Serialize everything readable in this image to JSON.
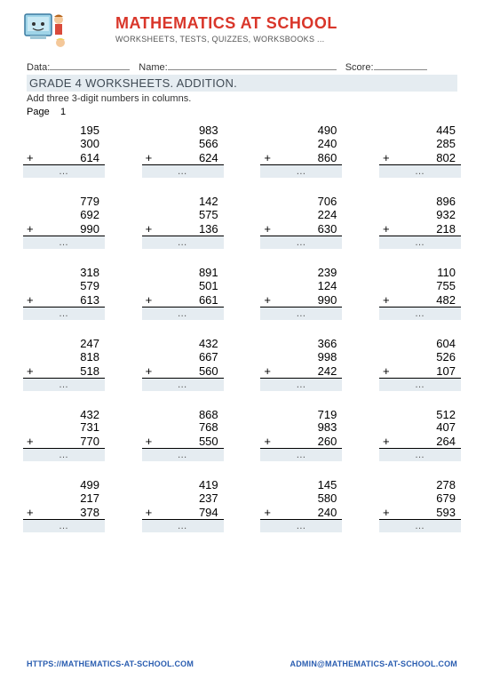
{
  "header": {
    "title": "MATHEMATICS AT SCHOOL",
    "subtitle": "WORKSHEETS, TESTS, QUIZZES, WORKSBOOKS ..."
  },
  "meta": {
    "data_label": "Data:",
    "name_label": "Name:",
    "score_label": "Score:"
  },
  "section": {
    "title": "GRADE 4 WORKSHEETS. ADDITION.",
    "instruction": "Add three 3-digit numbers in columns.",
    "page_label": "Page",
    "page_num": "1"
  },
  "op": "+",
  "dots": "…",
  "problems": [
    [
      [
        "195",
        "300",
        "614"
      ],
      [
        "983",
        "566",
        "624"
      ],
      [
        "490",
        "240",
        "860"
      ],
      [
        "445",
        "285",
        "802"
      ]
    ],
    [
      [
        "779",
        "692",
        "990"
      ],
      [
        "142",
        "575",
        "136"
      ],
      [
        "706",
        "224",
        "630"
      ],
      [
        "896",
        "932",
        "218"
      ]
    ],
    [
      [
        "318",
        "579",
        "613"
      ],
      [
        "891",
        "501",
        "661"
      ],
      [
        "239",
        "124",
        "990"
      ],
      [
        "110",
        "755",
        "482"
      ]
    ],
    [
      [
        "247",
        "818",
        "518"
      ],
      [
        "432",
        "667",
        "560"
      ],
      [
        "366",
        "998",
        "242"
      ],
      [
        "604",
        "526",
        "107"
      ]
    ],
    [
      [
        "432",
        "731",
        "770"
      ],
      [
        "868",
        "768",
        "550"
      ],
      [
        "719",
        "983",
        "260"
      ],
      [
        "512",
        "407",
        "264"
      ]
    ],
    [
      [
        "499",
        "217",
        "378"
      ],
      [
        "419",
        "237",
        "794"
      ],
      [
        "145",
        "580",
        "240"
      ],
      [
        "278",
        "679",
        "593"
      ]
    ]
  ],
  "footer": {
    "url": "HTTPS://MATHEMATICS-AT-SCHOOL.COM",
    "email": "ADMIN@MATHEMATICS-AT-SCHOOL.COM"
  }
}
